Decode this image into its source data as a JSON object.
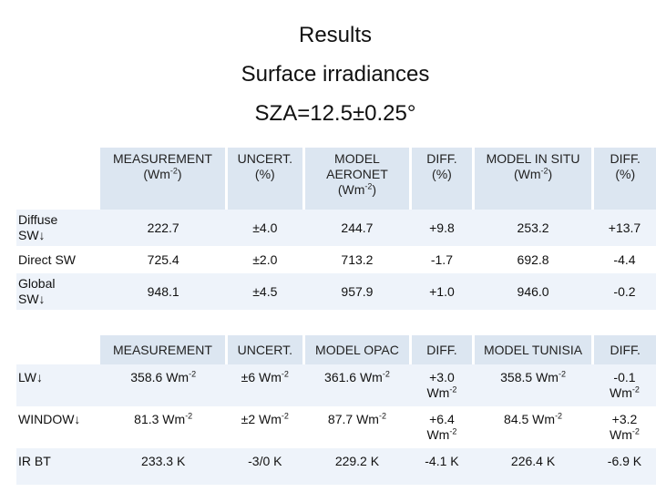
{
  "title": {
    "line1": "Results",
    "line2": "Surface irradiances",
    "line3": "SZA=12.5±0.25°"
  },
  "sw_table": {
    "headers": [
      {
        "main": "MEASUREMENT",
        "unit_pre": "(Wm",
        "unit_sup": "-2",
        "unit_post": ")"
      },
      {
        "main": "UNCERT.",
        "unit": "(%)"
      },
      {
        "main": "MODEL",
        "main2": "AERONET",
        "unit_pre": "(Wm",
        "unit_sup": "-2",
        "unit_post": ")"
      },
      {
        "main": "DIFF.",
        "unit": "(%)"
      },
      {
        "main": "MODEL IN SITU",
        "unit_pre": "(Wm",
        "unit_sup": "-2",
        "unit_post": ")"
      },
      {
        "main": "DIFF.",
        "unit": "(%)"
      }
    ],
    "rows": [
      {
        "label1": "Diffuse",
        "label2": "SW↓",
        "values": [
          "222.7",
          "±4.0",
          "244.7",
          "+9.8",
          "253.2",
          "+13.7"
        ]
      },
      {
        "label1": "Direct SW",
        "label2": "",
        "values": [
          "725.4",
          "±2.0",
          "713.2",
          "-1.7",
          "692.8",
          "-4.4"
        ]
      },
      {
        "label1": "Global",
        "label2": "SW↓",
        "values": [
          "948.1",
          "±4.5",
          "957.9",
          "+1.0",
          "946.0",
          "-0.2"
        ]
      }
    ]
  },
  "lw_table": {
    "headers": [
      "MEASUREMENT",
      "UNCERT.",
      "MODEL OPAC",
      "DIFF.",
      "MODEL TUNISIA",
      "DIFF."
    ],
    "unit_pre": "Wm",
    "unit_sup": "-2",
    "rows": [
      {
        "label": "LW↓",
        "values": [
          "358.6",
          "±6",
          "361.6",
          "+3.0",
          "358.5",
          "-0.1"
        ]
      },
      {
        "label": "WINDOW↓",
        "values": [
          "81.3",
          "±2",
          "87.7",
          "+6.4",
          "84.5",
          "+3.2"
        ]
      },
      {
        "label": "IR BT",
        "values": [
          "233.3 K",
          "-3/0 K",
          "229.2 K",
          "-4.1 K",
          "226.4 K",
          "-6.9 K"
        ]
      }
    ]
  }
}
